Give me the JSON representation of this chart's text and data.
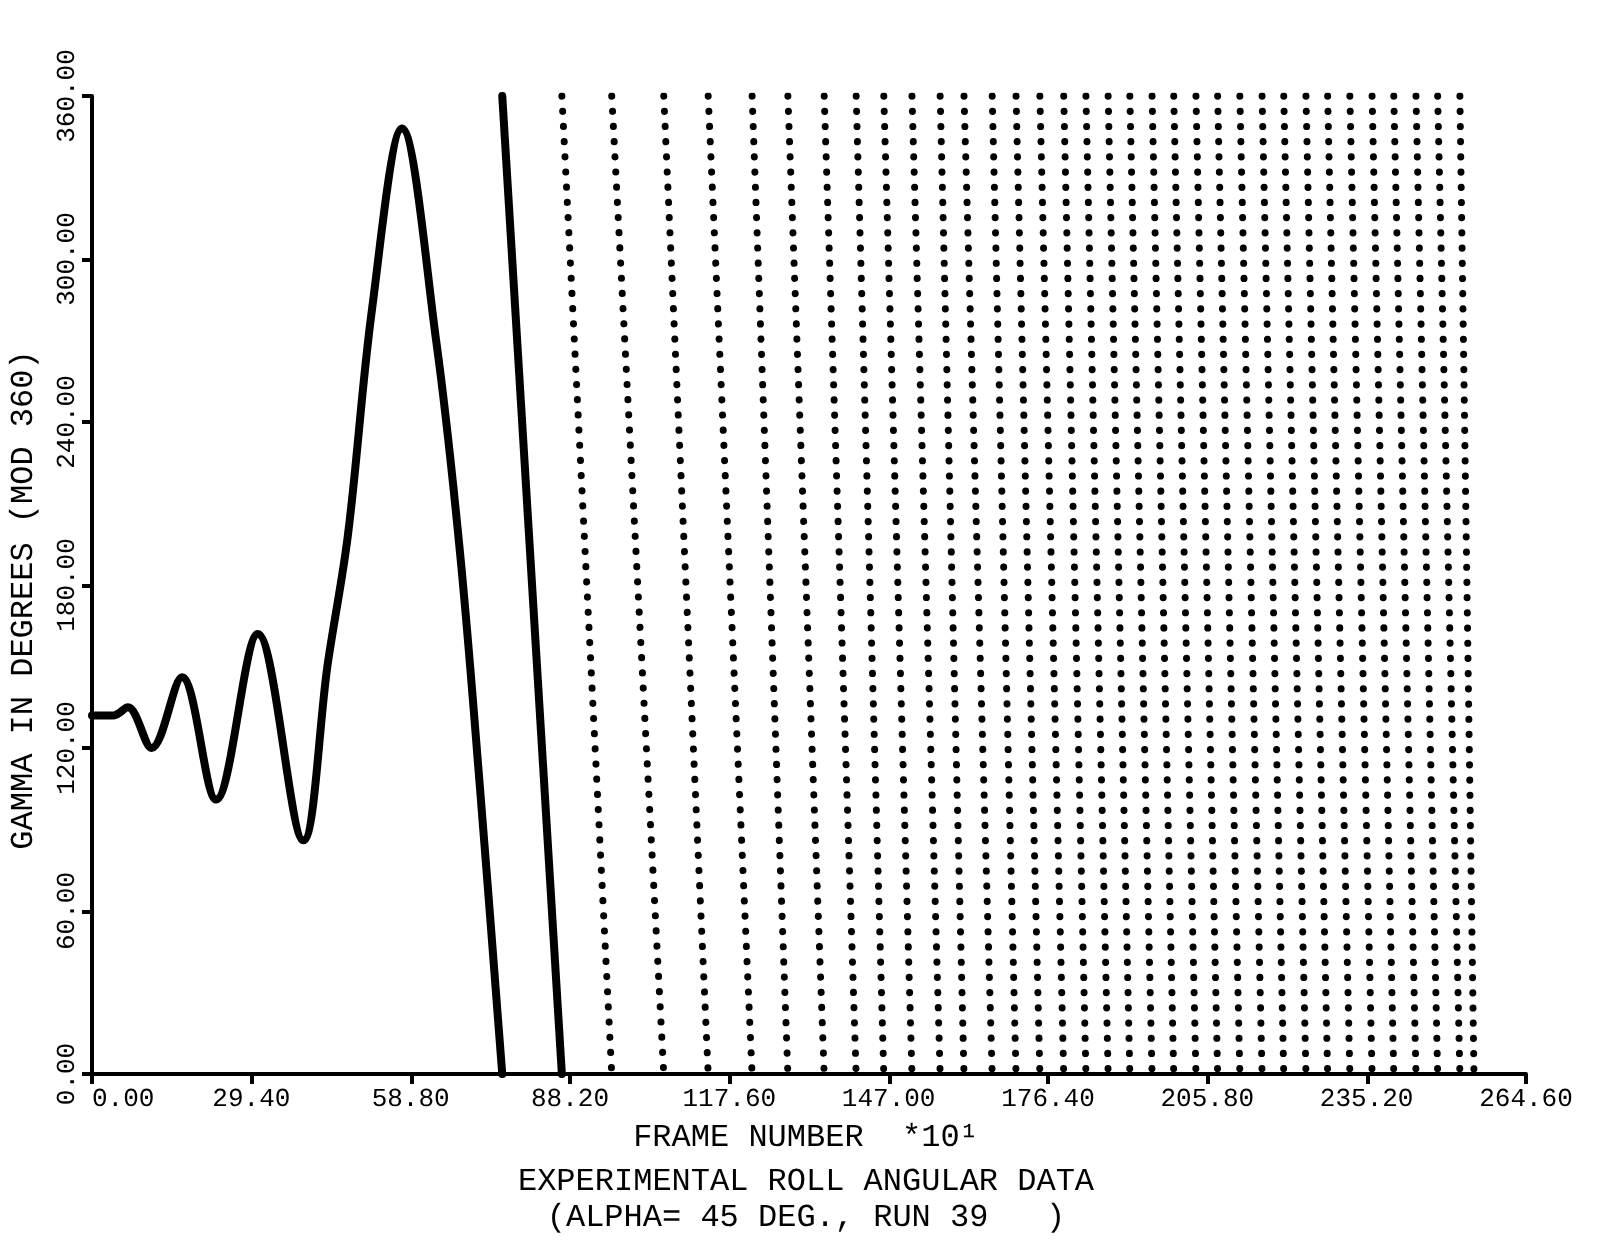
{
  "chart_data": {
    "type": "line",
    "xlabel": "FRAME NUMBER  *10¹",
    "ylabel": "GAMMA IN DEGREES (MOD 360)",
    "annotations": [
      "EXPERIMENTAL ROLL ANGULAR DATA",
      "(ALPHA= 45 DEG., RUN 39   )"
    ],
    "xlim": [
      0,
      264.6
    ],
    "xticks": [
      {
        "value": 0,
        "label": "0.00"
      },
      {
        "value": 29.4,
        "label": "29.40"
      },
      {
        "value": 58.8,
        "label": "58.80"
      },
      {
        "value": 88.2,
        "label": "88.20"
      },
      {
        "value": 117.6,
        "label": "117.60"
      },
      {
        "value": 147,
        "label": "147.00"
      },
      {
        "value": 176.4,
        "label": "176.40"
      },
      {
        "value": 205.8,
        "label": "205.80"
      },
      {
        "value": 235.2,
        "label": "235.20"
      },
      {
        "value": 264.6,
        "label": "264.60"
      }
    ],
    "ylim": [
      0,
      360
    ],
    "yticks": [
      {
        "value": 0,
        "label": "0.00"
      },
      {
        "value": 60,
        "label": "60.00"
      },
      {
        "value": 120,
        "label": "120.00"
      },
      {
        "value": 180,
        "label": "180.00"
      },
      {
        "value": 240,
        "label": "240.00"
      },
      {
        "value": 300,
        "label": "300.00"
      },
      {
        "value": 360,
        "label": "360.00"
      }
    ],
    "grid": false,
    "marker": "none",
    "series": [
      {
        "type": "line",
        "line_style": "solid",
        "color": "#000000",
        "x": [
          0,
          4,
          6.6,
          11,
          16.6,
          22.9,
          30.6,
          39,
          43.5,
          47.2,
          51.7,
          57.2,
          63.5,
          67.9,
          71.6,
          75.7
        ],
        "values": [
          132,
          132,
          135,
          120,
          146,
          101,
          162,
          86,
          151,
          198,
          282,
          348,
          270,
          192,
          105,
          0
        ]
      },
      {
        "type": "line",
        "line_style": "solid",
        "color": "#000000",
        "x": [
          75.7,
          86.7
        ],
        "values": [
          360,
          0
        ]
      },
      {
        "type": "line",
        "line_style": "dotted",
        "color": "#000000",
        "x": [
          86.7,
          95.9
        ],
        "values": [
          360,
          0
        ]
      },
      {
        "type": "line",
        "line_style": "dotted",
        "color": "#000000",
        "x": [
          95.9,
          105.5
        ],
        "values": [
          360,
          0
        ]
      },
      {
        "type": "line",
        "line_style": "dotted",
        "color": "#000000",
        "x": [
          105.5,
          113.7
        ],
        "values": [
          360,
          0
        ]
      },
      {
        "type": "line",
        "line_style": "dotted",
        "color": "#000000",
        "x": [
          113.7,
          121.8
        ],
        "values": [
          360,
          0
        ]
      },
      {
        "type": "line",
        "line_style": "dotted",
        "color": "#000000",
        "x": [
          121.8,
          128.4
        ],
        "values": [
          360,
          0
        ]
      },
      {
        "type": "line",
        "line_style": "dotted",
        "color": "#000000",
        "x": [
          128.4,
          135.1
        ],
        "values": [
          360,
          0
        ]
      },
      {
        "type": "line",
        "line_style": "dotted",
        "color": "#000000",
        "x": [
          135.1,
          141.0
        ],
        "values": [
          360,
          0
        ]
      },
      {
        "type": "line",
        "line_style": "dotted",
        "color": "#000000",
        "x": [
          141.0,
          146.1
        ],
        "values": [
          360,
          0
        ]
      },
      {
        "type": "line",
        "line_style": "dotted",
        "color": "#000000",
        "x": [
          146.1,
          151.3
        ],
        "values": [
          360,
          0
        ]
      },
      {
        "type": "line",
        "line_style": "dotted",
        "color": "#000000",
        "x": [
          151.3,
          156.5
        ],
        "values": [
          360,
          0
        ]
      },
      {
        "type": "line",
        "line_style": "dotted",
        "color": "#000000",
        "x": [
          156.5,
          160.9
        ],
        "values": [
          360,
          0
        ]
      },
      {
        "type": "line",
        "line_style": "dotted",
        "color": "#000000",
        "x": [
          160.9,
          166.1
        ],
        "values": [
          360,
          0
        ]
      },
      {
        "type": "line",
        "line_style": "dotted",
        "color": "#000000",
        "x": [
          166.1,
          170.5
        ],
        "values": [
          360,
          0
        ]
      },
      {
        "type": "line",
        "line_style": "dotted",
        "color": "#000000",
        "x": [
          170.5,
          174.9
        ],
        "values": [
          360,
          0
        ]
      },
      {
        "type": "line",
        "line_style": "dotted",
        "color": "#000000",
        "x": [
          174.9,
          179.3
        ],
        "values": [
          360,
          0
        ]
      },
      {
        "type": "line",
        "line_style": "dotted",
        "color": "#000000",
        "x": [
          179.3,
          183.4
        ],
        "values": [
          360,
          0
        ]
      },
      {
        "type": "line",
        "line_style": "dotted",
        "color": "#000000",
        "x": [
          183.4,
          187.5
        ],
        "values": [
          360,
          0
        ]
      },
      {
        "type": "line",
        "line_style": "dotted",
        "color": "#000000",
        "x": [
          187.5,
          191.5
        ],
        "values": [
          360,
          0
        ]
      },
      {
        "type": "line",
        "line_style": "dotted",
        "color": "#000000",
        "x": [
          191.5,
          195.6
        ],
        "values": [
          360,
          0
        ]
      },
      {
        "type": "line",
        "line_style": "dotted",
        "color": "#000000",
        "x": [
          195.6,
          199.6
        ],
        "values": [
          360,
          0
        ]
      },
      {
        "type": "line",
        "line_style": "dotted",
        "color": "#000000",
        "x": [
          199.6,
          203.7
        ],
        "values": [
          360,
          0
        ]
      },
      {
        "type": "line",
        "line_style": "dotted",
        "color": "#000000",
        "x": [
          203.7,
          207.7
        ],
        "values": [
          360,
          0
        ]
      },
      {
        "type": "line",
        "line_style": "dotted",
        "color": "#000000",
        "x": [
          207.7,
          211.8
        ],
        "values": [
          360,
          0
        ]
      },
      {
        "type": "line",
        "line_style": "dotted",
        "color": "#000000",
        "x": [
          211.8,
          215.9
        ],
        "values": [
          360,
          0
        ]
      },
      {
        "type": "line",
        "line_style": "dotted",
        "color": "#000000",
        "x": [
          215.9,
          219.9
        ],
        "values": [
          360,
          0
        ]
      },
      {
        "type": "line",
        "line_style": "dotted",
        "color": "#000000",
        "x": [
          219.9,
          224.0
        ],
        "values": [
          360,
          0
        ]
      },
      {
        "type": "line",
        "line_style": "dotted",
        "color": "#000000",
        "x": [
          224.0,
          228.0
        ],
        "values": [
          360,
          0
        ]
      },
      {
        "type": "line",
        "line_style": "dotted",
        "color": "#000000",
        "x": [
          228.0,
          232.1
        ],
        "values": [
          360,
          0
        ]
      },
      {
        "type": "line",
        "line_style": "dotted",
        "color": "#000000",
        "x": [
          232.1,
          236.2
        ],
        "values": [
          360,
          0
        ]
      },
      {
        "type": "line",
        "line_style": "dotted",
        "color": "#000000",
        "x": [
          236.2,
          240.2
        ],
        "values": [
          360,
          0
        ]
      },
      {
        "type": "line",
        "line_style": "dotted",
        "color": "#000000",
        "x": [
          240.2,
          244.3
        ],
        "values": [
          360,
          0
        ]
      },
      {
        "type": "line",
        "line_style": "dotted",
        "color": "#000000",
        "x": [
          244.3,
          248.3
        ],
        "values": [
          360,
          0
        ]
      },
      {
        "type": "line",
        "line_style": "dotted",
        "color": "#000000",
        "x": [
          248.3,
          252.4
        ],
        "values": [
          360,
          0
        ]
      },
      {
        "type": "line",
        "line_style": "dotted",
        "color": "#000000",
        "x": [
          252.4,
          255
        ],
        "values": [
          360,
          0
        ]
      }
    ]
  }
}
